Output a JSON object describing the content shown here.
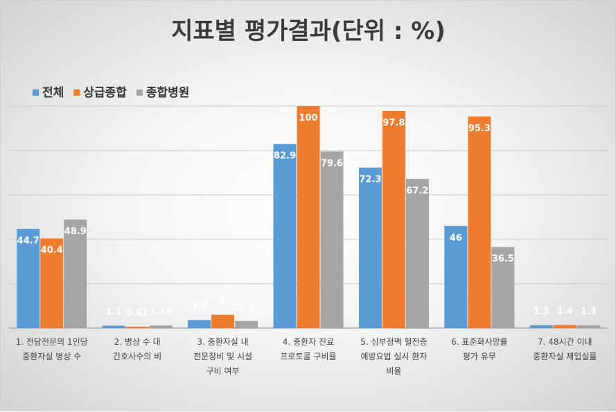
{
  "chart_data": {
    "type": "bar",
    "title": "지표별 평가결과(단위 : %)",
    "categories": [
      [
        "1. 전담전문의 1인당",
        "중환자실 병상 수"
      ],
      [
        "2. 병상 수 대",
        "간호사수의 비"
      ],
      [
        "3. 중환자실 내",
        "전문장비 및 시설",
        "구비 여부"
      ],
      [
        "4. 중환자 진료",
        "프로토콜 구비율"
      ],
      [
        "5. 심부정맥 혈전증",
        "예방요법 실시 환자",
        "비율"
      ],
      [
        "6. 표준화사망률",
        "평가 유무"
      ],
      [
        "7. 48시간 이내",
        "중환자실 재입실률"
      ]
    ],
    "series": [
      {
        "name": "전체",
        "color": "#5b9bd5",
        "values": [
          44.7,
          1.1,
          3.6,
          82.9,
          72.3,
          46,
          1.3
        ],
        "labels": [
          "44.7",
          "1.1",
          "3.6",
          "82.9",
          "72.3",
          "46",
          "1.3"
        ]
      },
      {
        "name": "상급종합",
        "color": "#ed7d31",
        "values": [
          40.4,
          0.61,
          6,
          100,
          97.8,
          95.3,
          1.4
        ],
        "labels": [
          "40.4",
          "0.61",
          "6",
          "100",
          "97.8",
          "95.3",
          "1.4"
        ]
      },
      {
        "name": "종합병원",
        "color": "#a5a5a5",
        "values": [
          48.9,
          1.19,
          3.2,
          79.6,
          67.2,
          36.5,
          1.3
        ],
        "labels": [
          "48.9",
          "1.19",
          "3.2",
          "79.6",
          "67.2",
          "36.5",
          "1.3"
        ]
      }
    ],
    "ylim": [
      0,
      100
    ],
    "grid": true,
    "legend_position": "top-left"
  }
}
